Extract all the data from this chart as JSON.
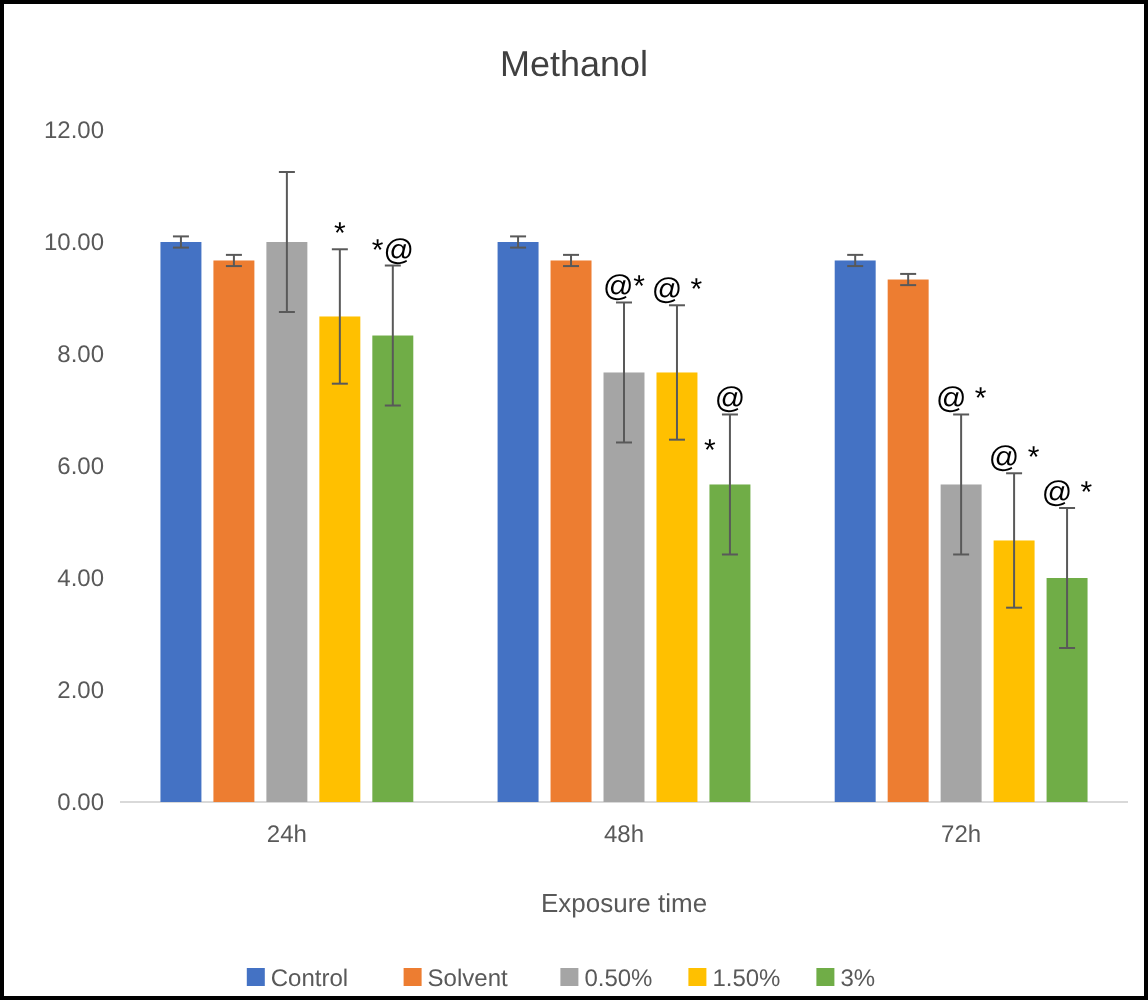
{
  "chart_data": {
    "type": "bar",
    "title": "Methanol",
    "xlabel": "Exposure time",
    "categories": [
      "24h",
      "48h",
      "72h"
    ],
    "series": [
      {
        "name": "Control",
        "color": "#4472c4",
        "values": [
          10,
          10,
          9.67
        ],
        "errors": [
          0.1,
          0.1,
          0.1
        ]
      },
      {
        "name": "Solvent",
        "color": "#ed7d31",
        "values": [
          9.67,
          9.67,
          9.33
        ],
        "errors": [
          0.1,
          0.1,
          0.1
        ]
      },
      {
        "name": "0.50%",
        "color": "#a5a5a5",
        "values": [
          10,
          7.67,
          5.67
        ],
        "errors": [
          1.25,
          1.25,
          1.25
        ]
      },
      {
        "name": "1.50%",
        "color": "#ffc000",
        "values": [
          8.67,
          7.67,
          4.67
        ],
        "errors": [
          1.2,
          1.2,
          1.2
        ]
      },
      {
        "name": "3%",
        "color": "#70ad47",
        "values": [
          8.33,
          5.67,
          4
        ],
        "errors": [
          1.25,
          1.25,
          1.25
        ]
      }
    ],
    "ylim": [
      0,
      12
    ],
    "yticks": [
      {
        "value": 0,
        "label": "0.00"
      },
      {
        "value": 2,
        "label": "2.00"
      },
      {
        "value": 4,
        "label": "4.00"
      },
      {
        "value": 6,
        "label": "6.00"
      },
      {
        "value": 8,
        "label": "8.00"
      },
      {
        "value": 10,
        "label": "10.00"
      },
      {
        "value": 12,
        "label": "12.00"
      }
    ],
    "grid": false,
    "legend": "bottom",
    "annotations": [
      {
        "text": "*",
        "x": "24h",
        "y": 9.87
      },
      {
        "text": "*@",
        "x": "24h",
        "y": 9.58
      },
      {
        "text": "@*",
        "x": "48h",
        "y": 8.92
      },
      {
        "text": "@ *",
        "x": "48h",
        "y": 8.87
      },
      {
        "text": "@\n*",
        "x": "48h",
        "y": 6.92
      },
      {
        "text": "@ *",
        "x": "72h",
        "y": 6.92
      },
      {
        "text": "@ *",
        "x": "72h",
        "y": 5.87
      },
      {
        "text": "@ *",
        "x": "72h",
        "y": 5.25
      }
    ]
  }
}
